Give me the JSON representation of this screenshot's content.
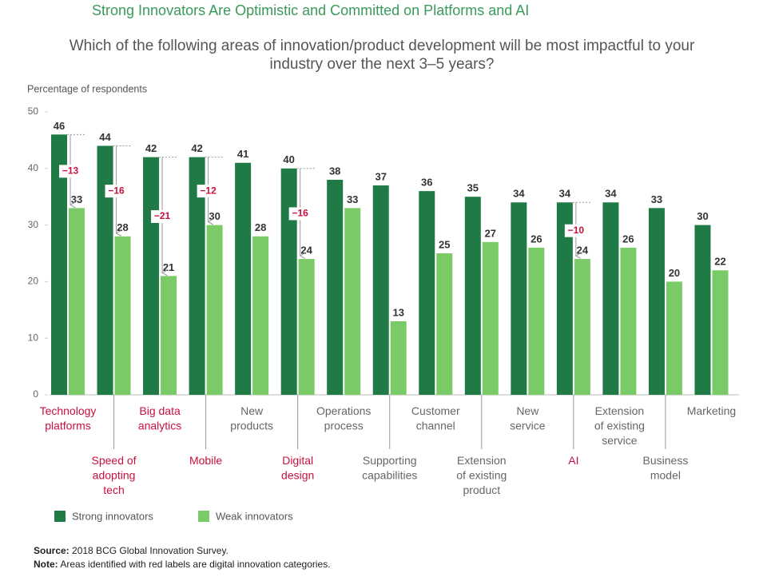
{
  "chart_data": {
    "type": "bar",
    "title": "Strong Innovators Are Optimistic and Committed on Platforms and AI",
    "subtitle": "Which of the following areas of innovation/product development will be most impactful to your industry over the next 3–5 years?",
    "y_label": "Percentage of respondents",
    "categories": [
      "Technology platforms",
      "Speed of adopting tech",
      "Big data analytics",
      "Mobile",
      "New products",
      "Digital design",
      "Operations process",
      "Supporting capabilities",
      "Customer channel",
      "Extension of existing product",
      "New service",
      "AI",
      "Extension of existing service",
      "Business model",
      "Marketing"
    ],
    "category_label_colors": [
      "#c8103e",
      "#c8103e",
      "#c8103e",
      "#c8103e",
      "#666666",
      "#c8103e",
      "#666666",
      "#666666",
      "#666666",
      "#666666",
      "#666666",
      "#c8103e",
      "#666666",
      "#666666",
      "#666666"
    ],
    "series": [
      {
        "name": "Strong innovators",
        "color": "#1f7a46",
        "values": [
          46,
          44,
          42,
          42,
          41,
          40,
          38,
          37,
          36,
          35,
          34,
          34,
          34,
          33,
          30
        ]
      },
      {
        "name": "Weak innovators",
        "color": "#7acb68",
        "values": [
          33,
          28,
          21,
          30,
          28,
          24,
          33,
          13,
          25,
          27,
          26,
          24,
          26,
          20,
          22
        ]
      }
    ],
    "differences": [
      -13,
      -16,
      -21,
      -12,
      null,
      -16,
      null,
      null,
      null,
      null,
      null,
      -10,
      null,
      null,
      null
    ],
    "difference_labels": [
      "−13",
      "−16",
      "−21",
      "−12",
      null,
      "−16",
      null,
      null,
      null,
      null,
      null,
      "−10",
      null,
      null,
      null
    ],
    "ylim": [
      0,
      50
    ],
    "yticks": [
      0,
      10,
      20,
      30,
      40,
      50
    ],
    "source": {
      "label": "Source:",
      "text": "2018 BCG Global Innovation Survey."
    },
    "note": {
      "label": "Note:",
      "text": "Areas identified with red labels are digital innovation categories."
    }
  }
}
